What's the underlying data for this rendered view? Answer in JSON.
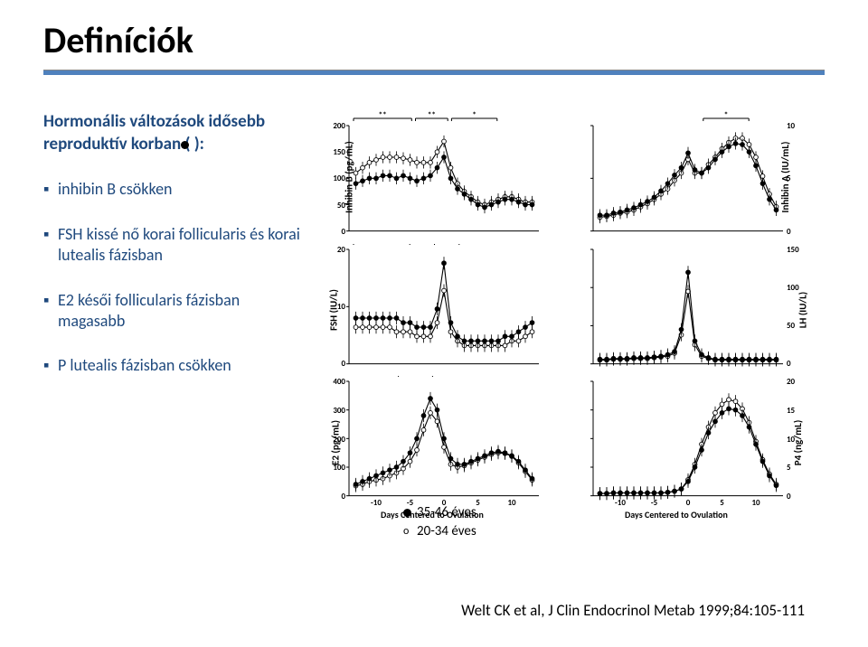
{
  "title": "Definíciók",
  "subtitle": "Hormonális változások idősebb reproduktív korban (  ):",
  "bullets": [
    "inhibin B csökken",
    "FSH kissé nő korai follicularis és korai lutealis fázisban",
    "E2 késői follicularis fázisban magasabb",
    "P lutealis fázisban csökken"
  ],
  "legend": {
    "closed": "35-46 éves",
    "open": "20-34 éves"
  },
  "citation": "Welt CK et al, J Clin Endocrinol Metab 1999;84:105-111",
  "xlabel": "Days Centered to Ovulation",
  "xticks": [
    "-10",
    "-5",
    "0",
    "5",
    "10"
  ],
  "panels": {
    "inhibinB": {
      "ylabel": "Inhibin B (pg/mL)",
      "yticks": [
        "200",
        "150",
        "100",
        "50",
        "0"
      ],
      "sig": [
        "**",
        "**",
        "*"
      ],
      "curve_old": [
        [
          -13,
          90
        ],
        [
          -12,
          95
        ],
        [
          -11,
          100
        ],
        [
          -10,
          100
        ],
        [
          -9,
          105
        ],
        [
          -8,
          105
        ],
        [
          -7,
          100
        ],
        [
          -6,
          105
        ],
        [
          -5,
          100
        ],
        [
          -4,
          95
        ],
        [
          -3,
          100
        ],
        [
          -2,
          105
        ],
        [
          -1,
          120
        ],
        [
          0,
          140
        ],
        [
          1,
          100
        ],
        [
          2,
          80
        ],
        [
          3,
          70
        ],
        [
          4,
          60
        ],
        [
          5,
          50
        ],
        [
          6,
          45
        ],
        [
          7,
          50
        ],
        [
          8,
          55
        ],
        [
          9,
          60
        ],
        [
          10,
          60
        ],
        [
          11,
          55
        ],
        [
          12,
          50
        ],
        [
          13,
          50
        ]
      ],
      "curve_young": [
        [
          -13,
          110
        ],
        [
          -12,
          120
        ],
        [
          -11,
          130
        ],
        [
          -10,
          135
        ],
        [
          -9,
          140
        ],
        [
          -8,
          140
        ],
        [
          -7,
          140
        ],
        [
          -6,
          138
        ],
        [
          -5,
          135
        ],
        [
          -4,
          130
        ],
        [
          -3,
          130
        ],
        [
          -2,
          130
        ],
        [
          -1,
          150
        ],
        [
          0,
          170
        ],
        [
          1,
          120
        ],
        [
          2,
          90
        ],
        [
          3,
          75
        ],
        [
          4,
          65
        ],
        [
          5,
          55
        ],
        [
          6,
          50
        ],
        [
          7,
          55
        ],
        [
          8,
          60
        ],
        [
          9,
          65
        ],
        [
          10,
          65
        ],
        [
          11,
          60
        ],
        [
          12,
          55
        ],
        [
          13,
          55
        ]
      ]
    },
    "fsh": {
      "ylabel": "FSH (IU/L)",
      "yticks": [
        "20",
        "10",
        "0"
      ],
      "sig": [
        "*",
        "*"
      ],
      "curve_old": [
        [
          -13,
          10
        ],
        [
          -12,
          10
        ],
        [
          -11,
          10
        ],
        [
          -10,
          10
        ],
        [
          -9,
          10
        ],
        [
          -8,
          10
        ],
        [
          -7,
          10
        ],
        [
          -6,
          9
        ],
        [
          -5,
          9
        ],
        [
          -4,
          8
        ],
        [
          -3,
          8
        ],
        [
          -2,
          8
        ],
        [
          -1,
          12
        ],
        [
          0,
          22
        ],
        [
          1,
          9
        ],
        [
          2,
          6
        ],
        [
          3,
          5
        ],
        [
          4,
          5
        ],
        [
          5,
          5
        ],
        [
          6,
          5
        ],
        [
          7,
          5
        ],
        [
          8,
          5
        ],
        [
          9,
          6
        ],
        [
          10,
          6
        ],
        [
          11,
          7
        ],
        [
          12,
          8
        ],
        [
          13,
          9
        ]
      ],
      "curve_young": [
        [
          -13,
          8
        ],
        [
          -12,
          8
        ],
        [
          -11,
          8
        ],
        [
          -10,
          8
        ],
        [
          -9,
          8
        ],
        [
          -8,
          8
        ],
        [
          -7,
          7
        ],
        [
          -6,
          7
        ],
        [
          -5,
          7
        ],
        [
          -4,
          6
        ],
        [
          -3,
          6
        ],
        [
          -2,
          6
        ],
        [
          -1,
          9
        ],
        [
          0,
          16
        ],
        [
          1,
          7
        ],
        [
          2,
          5
        ],
        [
          3,
          4
        ],
        [
          4,
          4
        ],
        [
          5,
          4
        ],
        [
          6,
          4
        ],
        [
          7,
          4
        ],
        [
          8,
          4
        ],
        [
          9,
          4
        ],
        [
          10,
          5
        ],
        [
          11,
          5
        ],
        [
          12,
          6
        ],
        [
          13,
          7
        ]
      ]
    },
    "e2": {
      "ylabel": "E2 (pg/mL)",
      "yticks": [
        "400",
        "300",
        "200",
        "100",
        "0"
      ],
      "sig": [
        "**"
      ],
      "curve_old": [
        [
          -13,
          40
        ],
        [
          -12,
          50
        ],
        [
          -11,
          60
        ],
        [
          -10,
          70
        ],
        [
          -9,
          80
        ],
        [
          -8,
          90
        ],
        [
          -7,
          100
        ],
        [
          -6,
          120
        ],
        [
          -5,
          150
        ],
        [
          -4,
          200
        ],
        [
          -3,
          280
        ],
        [
          -2,
          340
        ],
        [
          -1,
          300
        ],
        [
          0,
          200
        ],
        [
          1,
          130
        ],
        [
          2,
          110
        ],
        [
          3,
          110
        ],
        [
          4,
          120
        ],
        [
          5,
          130
        ],
        [
          6,
          140
        ],
        [
          7,
          150
        ],
        [
          8,
          155
        ],
        [
          9,
          150
        ],
        [
          10,
          140
        ],
        [
          11,
          120
        ],
        [
          12,
          90
        ],
        [
          13,
          60
        ]
      ],
      "curve_young": [
        [
          -13,
          35
        ],
        [
          -12,
          40
        ],
        [
          -11,
          50
        ],
        [
          -10,
          55
        ],
        [
          -9,
          60
        ],
        [
          -8,
          70
        ],
        [
          -7,
          80
        ],
        [
          -6,
          95
        ],
        [
          -5,
          120
        ],
        [
          -4,
          160
        ],
        [
          -3,
          230
        ],
        [
          -2,
          290
        ],
        [
          -1,
          260
        ],
        [
          0,
          170
        ],
        [
          1,
          110
        ],
        [
          2,
          100
        ],
        [
          3,
          105
        ],
        [
          4,
          115
        ],
        [
          5,
          125
        ],
        [
          6,
          135
        ],
        [
          7,
          145
        ],
        [
          8,
          150
        ],
        [
          9,
          148
        ],
        [
          10,
          138
        ],
        [
          11,
          115
        ],
        [
          12,
          85
        ],
        [
          13,
          55
        ]
      ]
    },
    "inhibinA": {
      "ylabel": "Inhibin A (IU/mL)",
      "yticks": [
        "10",
        "5",
        "0"
      ],
      "sig": [
        "*"
      ],
      "curve_old": [
        [
          -13,
          1.5
        ],
        [
          -12,
          1.5
        ],
        [
          -11,
          1.7
        ],
        [
          -10,
          1.8
        ],
        [
          -9,
          2.0
        ],
        [
          -8,
          2.2
        ],
        [
          -7,
          2.5
        ],
        [
          -6,
          2.8
        ],
        [
          -5,
          3.2
        ],
        [
          -4,
          3.8
        ],
        [
          -3,
          4.5
        ],
        [
          -2,
          5.3
        ],
        [
          -1,
          6.0
        ],
        [
          0,
          7.4
        ],
        [
          1,
          5.8
        ],
        [
          2,
          5.5
        ],
        [
          3,
          6.0
        ],
        [
          4,
          6.8
        ],
        [
          5,
          7.5
        ],
        [
          6,
          8.0
        ],
        [
          7,
          8.3
        ],
        [
          8,
          8.2
        ],
        [
          9,
          7.5
        ],
        [
          10,
          6.2
        ],
        [
          11,
          4.5
        ],
        [
          12,
          3.0
        ],
        [
          13,
          2.0
        ]
      ],
      "curve_young": [
        [
          -13,
          1.3
        ],
        [
          -12,
          1.4
        ],
        [
          -11,
          1.5
        ],
        [
          -10,
          1.7
        ],
        [
          -9,
          1.8
        ],
        [
          -8,
          2.0
        ],
        [
          -7,
          2.3
        ],
        [
          -6,
          2.6
        ],
        [
          -5,
          3.0
        ],
        [
          -4,
          3.5
        ],
        [
          -3,
          4.0
        ],
        [
          -2,
          4.8
        ],
        [
          -1,
          5.5
        ],
        [
          0,
          6.8
        ],
        [
          1,
          5.5
        ],
        [
          2,
          5.5
        ],
        [
          3,
          6.3
        ],
        [
          4,
          7.0
        ],
        [
          5,
          7.8
        ],
        [
          6,
          8.4
        ],
        [
          7,
          8.8
        ],
        [
          8,
          8.8
        ],
        [
          9,
          8.2
        ],
        [
          10,
          7.0
        ],
        [
          11,
          5.2
        ],
        [
          12,
          3.5
        ],
        [
          13,
          2.3
        ]
      ]
    },
    "lh": {
      "ylabel": "LH (IU/L)",
      "yticks": [
        "150",
        "100",
        "50",
        "0"
      ],
      "curve_old": [
        [
          -13,
          6
        ],
        [
          -12,
          6
        ],
        [
          -11,
          7
        ],
        [
          -10,
          7
        ],
        [
          -9,
          7
        ],
        [
          -8,
          8
        ],
        [
          -7,
          8
        ],
        [
          -6,
          8
        ],
        [
          -5,
          9
        ],
        [
          -4,
          10
        ],
        [
          -3,
          12
        ],
        [
          -2,
          16
        ],
        [
          -1,
          45
        ],
        [
          0,
          120
        ],
        [
          1,
          30
        ],
        [
          2,
          12
        ],
        [
          3,
          8
        ],
        [
          4,
          6
        ],
        [
          5,
          6
        ],
        [
          6,
          6
        ],
        [
          7,
          6
        ],
        [
          8,
          6
        ],
        [
          9,
          6
        ],
        [
          10,
          6
        ],
        [
          11,
          6
        ],
        [
          12,
          6
        ],
        [
          13,
          6
        ]
      ],
      "curve_young": [
        [
          -13,
          5
        ],
        [
          -12,
          5
        ],
        [
          -11,
          6
        ],
        [
          -10,
          6
        ],
        [
          -9,
          6
        ],
        [
          -8,
          7
        ],
        [
          -7,
          7
        ],
        [
          -6,
          7
        ],
        [
          -5,
          8
        ],
        [
          -4,
          9
        ],
        [
          -3,
          10
        ],
        [
          -2,
          14
        ],
        [
          -1,
          38
        ],
        [
          0,
          95
        ],
        [
          1,
          25
        ],
        [
          2,
          10
        ],
        [
          3,
          7
        ],
        [
          4,
          5
        ],
        [
          5,
          5
        ],
        [
          6,
          5
        ],
        [
          7,
          5
        ],
        [
          8,
          5
        ],
        [
          9,
          5
        ],
        [
          10,
          5
        ],
        [
          11,
          5
        ],
        [
          12,
          5
        ],
        [
          13,
          5
        ]
      ]
    },
    "p4": {
      "ylabel": "P4 (ng/mL)",
      "yticks": [
        "20",
        "15",
        "10",
        "5",
        "0"
      ],
      "curve_old": [
        [
          -13,
          0.4
        ],
        [
          -12,
          0.4
        ],
        [
          -11,
          0.5
        ],
        [
          -10,
          0.5
        ],
        [
          -9,
          0.5
        ],
        [
          -8,
          0.5
        ],
        [
          -7,
          0.5
        ],
        [
          -6,
          0.5
        ],
        [
          -5,
          0.5
        ],
        [
          -4,
          0.5
        ],
        [
          -3,
          0.6
        ],
        [
          -2,
          0.8
        ],
        [
          -1,
          1.2
        ],
        [
          0,
          2.5
        ],
        [
          1,
          5
        ],
        [
          2,
          8
        ],
        [
          3,
          11
        ],
        [
          4,
          13
        ],
        [
          5,
          14.5
        ],
        [
          6,
          15.2
        ],
        [
          7,
          15
        ],
        [
          8,
          14
        ],
        [
          9,
          12
        ],
        [
          10,
          9
        ],
        [
          11,
          6
        ],
        [
          12,
          3.5
        ],
        [
          13,
          1.8
        ]
      ],
      "curve_young": [
        [
          -13,
          0.4
        ],
        [
          -12,
          0.4
        ],
        [
          -11,
          0.5
        ],
        [
          -10,
          0.5
        ],
        [
          -9,
          0.5
        ],
        [
          -8,
          0.5
        ],
        [
          -7,
          0.5
        ],
        [
          -6,
          0.5
        ],
        [
          -5,
          0.5
        ],
        [
          -4,
          0.5
        ],
        [
          -3,
          0.6
        ],
        [
          -2,
          0.8
        ],
        [
          -1,
          1.2
        ],
        [
          0,
          2.8
        ],
        [
          1,
          5.5
        ],
        [
          2,
          9
        ],
        [
          3,
          12
        ],
        [
          4,
          14.5
        ],
        [
          5,
          16
        ],
        [
          6,
          16.8
        ],
        [
          7,
          16.5
        ],
        [
          8,
          15.2
        ],
        [
          9,
          12.8
        ],
        [
          10,
          9.5
        ],
        [
          11,
          6.3
        ],
        [
          12,
          3.8
        ],
        [
          13,
          2.0
        ]
      ]
    }
  },
  "colors": {
    "line": "#000000",
    "bg": "#ffffff",
    "accent": "#4f81bd",
    "text": "#1f497d"
  }
}
